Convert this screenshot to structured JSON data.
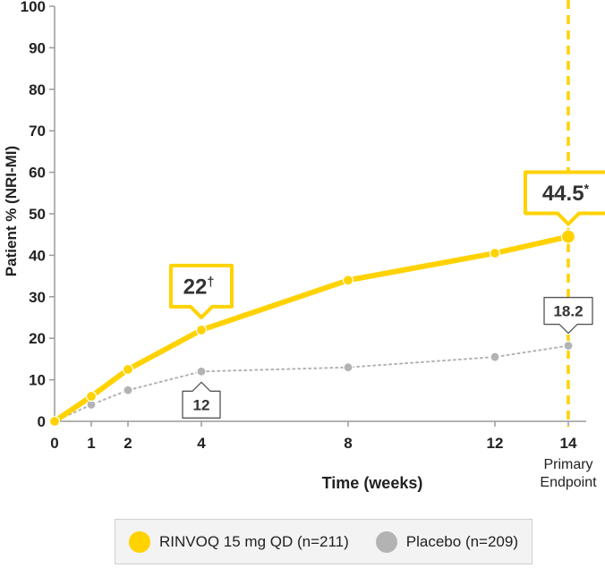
{
  "chart_data": {
    "type": "line",
    "ylabel": "Patient % (NRI-MI)",
    "xlabel": "Time (weeks)",
    "ylim": [
      0,
      100
    ],
    "yticks": [
      0,
      10,
      20,
      30,
      40,
      50,
      60,
      70,
      80,
      90,
      100
    ],
    "xticks": [
      0,
      1,
      2,
      4,
      8,
      12,
      14
    ],
    "x_tick_labels": [
      "0",
      "1",
      "2",
      "4",
      "8",
      "12",
      "14"
    ],
    "x_tick_sublabel": {
      "x": 14,
      "lines": [
        "Primary",
        "Endpoint"
      ]
    },
    "reference_line_x": 14,
    "series": [
      {
        "name": "RINVOQ 15 mg QD (n=211)",
        "color": "#ffd200",
        "style": "solid",
        "x": [
          0,
          1,
          2,
          4,
          8,
          12,
          14
        ],
        "y": [
          0,
          6,
          12.5,
          22,
          34,
          40.5,
          44.5
        ]
      },
      {
        "name": "Placebo (n=209)",
        "color": "#b3b3b3",
        "style": "dotted",
        "x": [
          0,
          1,
          2,
          4,
          8,
          12,
          14
        ],
        "y": [
          0,
          4,
          7.5,
          12,
          13,
          15.5,
          18.2
        ]
      }
    ],
    "callouts": [
      {
        "series": 0,
        "x": 4,
        "y": 22,
        "text": "22",
        "sup": "†",
        "position": "above",
        "style": "yellow"
      },
      {
        "series": 0,
        "x": 14,
        "y": 44.5,
        "text": "44.5",
        "sup": "*",
        "position": "above",
        "style": "yellow"
      },
      {
        "series": 1,
        "x": 4,
        "y": 12,
        "text": "12",
        "sup": "",
        "position": "below",
        "style": "gray"
      },
      {
        "series": 1,
        "x": 14,
        "y": 18.2,
        "text": "18.2",
        "sup": "",
        "position": "above",
        "style": "gray"
      }
    ],
    "legend": {
      "position": "bottom",
      "items": [
        "RINVOQ 15 mg QD (n=211)",
        "Placebo (n=209)"
      ]
    }
  }
}
